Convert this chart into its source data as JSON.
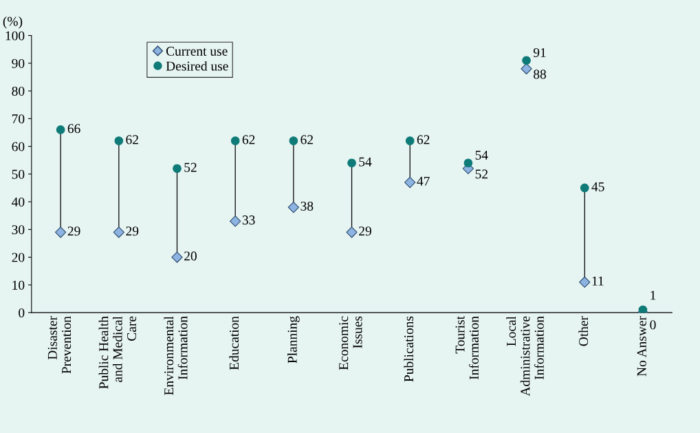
{
  "chart_data": {
    "type": "scatter",
    "ylabel": "(%)",
    "categories": [
      "Disaster\nPrevention",
      "Public Health\nand Medical\nCare",
      "Environmental\nInformation",
      "Education",
      "Planning",
      "Economic\nIssues",
      "Publications",
      "Tourist\nInformation",
      "Local\nAdministrative\nInformation",
      "Other",
      "No Answer"
    ],
    "series": [
      {
        "name": "Current use",
        "color": "#8db3e2",
        "marker": "diamond",
        "values": [
          29,
          29,
          20,
          33,
          38,
          29,
          47,
          52,
          88,
          11,
          0
        ]
      },
      {
        "name": "Desired use",
        "color": "#0f7b78",
        "marker": "circle",
        "values": [
          66,
          62,
          52,
          62,
          62,
          54,
          62,
          54,
          91,
          45,
          1
        ]
      }
    ],
    "ylim": [
      0,
      100
    ],
    "yticks": [
      0,
      10,
      20,
      30,
      40,
      50,
      60,
      70,
      80,
      90,
      100
    ],
    "data_labels": true,
    "legend": "top left",
    "grid": false
  }
}
